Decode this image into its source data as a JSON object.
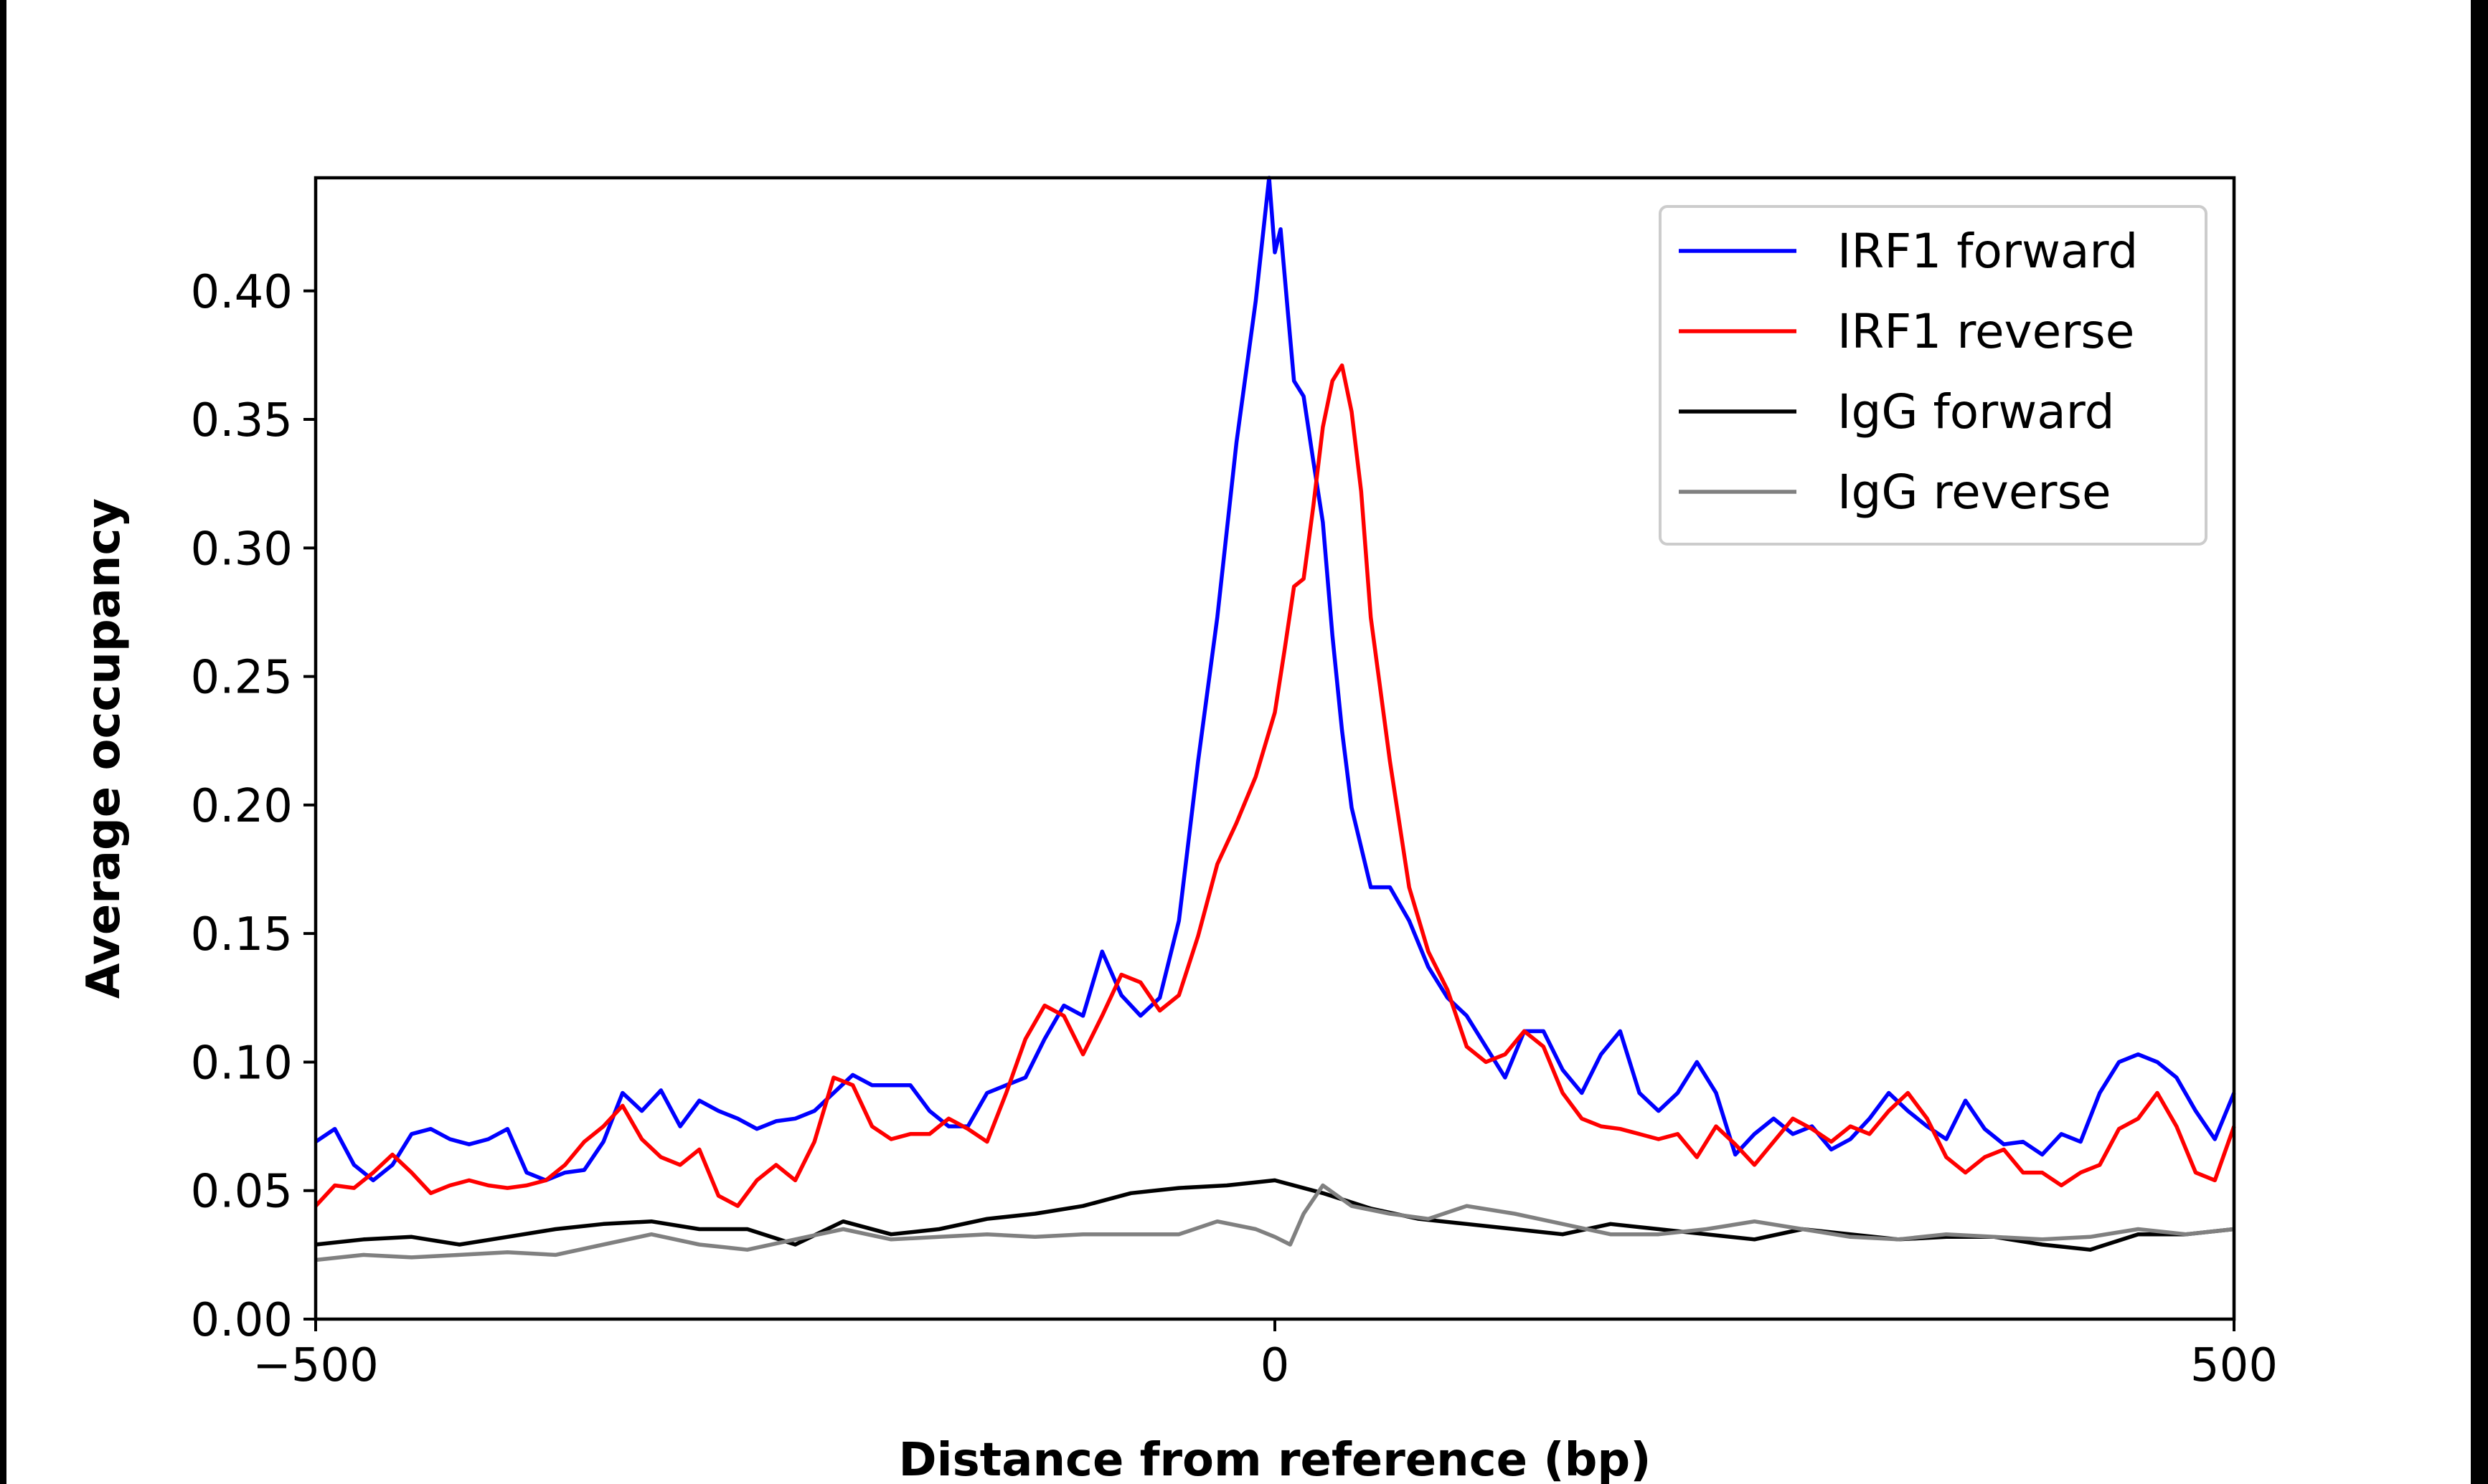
{
  "chart_data": {
    "type": "line",
    "title": "",
    "xlabel": "Distance from reference (bp)",
    "ylabel": "Average occupancy",
    "xlim": [
      -500,
      500
    ],
    "ylim": [
      0,
      0.444
    ],
    "xticks": [
      -500,
      0,
      500
    ],
    "xtick_labels": [
      "−500",
      "0",
      "500"
    ],
    "yticks": [
      0,
      0.05,
      0.1,
      0.15,
      0.2,
      0.25,
      0.3,
      0.35,
      0.4
    ],
    "ytick_labels": [
      "0.00",
      "0.05",
      "0.10",
      "0.15",
      "0.20",
      "0.25",
      "0.30",
      "0.35",
      "0.40"
    ],
    "grid": false,
    "legend_position": "top-right",
    "series": [
      {
        "name": "IRF1 forward",
        "color": "#0000ff",
        "x": [
          -500,
          -490,
          -480,
          -470,
          -460,
          -450,
          -440,
          -430,
          -420,
          -410,
          -400,
          -390,
          -380,
          -370,
          -360,
          -350,
          -340,
          -330,
          -320,
          -310,
          -300,
          -290,
          -280,
          -270,
          -260,
          -250,
          -240,
          -230,
          -220,
          -210,
          -200,
          -190,
          -180,
          -170,
          -160,
          -150,
          -140,
          -130,
          -120,
          -110,
          -100,
          -90,
          -80,
          -70,
          -60,
          -50,
          -40,
          -30,
          -20,
          -10,
          -3,
          0,
          3,
          7,
          10,
          15,
          20,
          25,
          30,
          35,
          40,
          50,
          60,
          70,
          80,
          90,
          100,
          110,
          120,
          130,
          140,
          150,
          160,
          170,
          180,
          190,
          200,
          210,
          220,
          230,
          240,
          250,
          260,
          270,
          280,
          290,
          300,
          310,
          320,
          330,
          340,
          350,
          360,
          370,
          380,
          390,
          400,
          410,
          420,
          430,
          440,
          450,
          460,
          470,
          480,
          490,
          500
        ],
        "y": [
          0.069,
          0.074,
          0.06,
          0.054,
          0.06,
          0.072,
          0.074,
          0.07,
          0.068,
          0.07,
          0.074,
          0.057,
          0.054,
          0.057,
          0.058,
          0.069,
          0.088,
          0.081,
          0.089,
          0.075,
          0.085,
          0.081,
          0.078,
          0.074,
          0.077,
          0.078,
          0.081,
          0.088,
          0.095,
          0.091,
          0.091,
          0.091,
          0.081,
          0.075,
          0.075,
          0.088,
          0.091,
          0.094,
          0.109,
          0.122,
          0.118,
          0.143,
          0.126,
          0.118,
          0.125,
          0.155,
          0.217,
          0.273,
          0.341,
          0.396,
          0.444,
          0.415,
          0.424,
          0.39,
          0.365,
          0.359,
          0.334,
          0.31,
          0.266,
          0.229,
          0.199,
          0.168,
          0.168,
          0.155,
          0.137,
          0.125,
          0.118,
          0.106,
          0.094,
          0.112,
          0.112,
          0.097,
          0.088,
          0.103,
          0.112,
          0.088,
          0.081,
          0.088,
          0.1,
          0.088,
          0.064,
          0.072,
          0.078,
          0.072,
          0.075,
          0.066,
          0.07,
          0.078,
          0.088,
          0.081,
          0.075,
          0.07,
          0.085,
          0.074,
          0.068,
          0.069,
          0.064,
          0.072,
          0.069,
          0.088,
          0.1,
          0.103,
          0.1,
          0.094,
          0.081,
          0.07,
          0.088
        ]
      },
      {
        "name": "IRF1 reverse",
        "color": "#ff0000",
        "x": [
          -500,
          -490,
          -480,
          -470,
          -460,
          -450,
          -440,
          -430,
          -420,
          -410,
          -400,
          -390,
          -380,
          -370,
          -360,
          -350,
          -340,
          -330,
          -320,
          -310,
          -300,
          -290,
          -280,
          -270,
          -260,
          -250,
          -240,
          -230,
          -220,
          -210,
          -200,
          -190,
          -180,
          -170,
          -160,
          -150,
          -140,
          -130,
          -120,
          -110,
          -100,
          -90,
          -80,
          -70,
          -60,
          -50,
          -40,
          -30,
          -20,
          -10,
          0,
          5,
          10,
          15,
          20,
          25,
          30,
          35,
          40,
          45,
          50,
          60,
          70,
          80,
          90,
          100,
          110,
          120,
          130,
          140,
          150,
          160,
          170,
          180,
          190,
          200,
          210,
          220,
          230,
          240,
          250,
          260,
          270,
          280,
          290,
          300,
          310,
          320,
          330,
          340,
          350,
          360,
          370,
          380,
          390,
          400,
          410,
          420,
          430,
          440,
          450,
          460,
          470,
          480,
          490,
          500
        ],
        "y": [
          0.044,
          0.052,
          0.051,
          0.057,
          0.064,
          0.057,
          0.049,
          0.052,
          0.054,
          0.052,
          0.051,
          0.052,
          0.054,
          0.06,
          0.069,
          0.075,
          0.083,
          0.07,
          0.063,
          0.06,
          0.066,
          0.048,
          0.044,
          0.054,
          0.06,
          0.054,
          0.069,
          0.094,
          0.091,
          0.075,
          0.07,
          0.072,
          0.072,
          0.078,
          0.074,
          0.069,
          0.088,
          0.109,
          0.122,
          0.118,
          0.103,
          0.118,
          0.134,
          0.131,
          0.12,
          0.126,
          0.149,
          0.177,
          0.193,
          0.211,
          0.236,
          0.26,
          0.285,
          0.288,
          0.316,
          0.347,
          0.365,
          0.371,
          0.353,
          0.322,
          0.273,
          0.217,
          0.168,
          0.143,
          0.128,
          0.106,
          0.1,
          0.103,
          0.112,
          0.106,
          0.088,
          0.078,
          0.075,
          0.074,
          0.072,
          0.07,
          0.072,
          0.063,
          0.075,
          0.068,
          0.06,
          0.069,
          0.078,
          0.074,
          0.069,
          0.075,
          0.072,
          0.081,
          0.088,
          0.078,
          0.063,
          0.057,
          0.063,
          0.066,
          0.057,
          0.057,
          0.052,
          0.057,
          0.06,
          0.074,
          0.078,
          0.088,
          0.075,
          0.057,
          0.054,
          0.075
        ]
      },
      {
        "name": "IgG forward",
        "color": "#000000",
        "x": [
          -500,
          -475,
          -450,
          -425,
          -400,
          -375,
          -350,
          -325,
          -300,
          -275,
          -250,
          -225,
          -200,
          -175,
          -150,
          -125,
          -100,
          -75,
          -50,
          -25,
          0,
          25,
          50,
          75,
          100,
          125,
          150,
          175,
          200,
          225,
          250,
          275,
          300,
          325,
          350,
          375,
          400,
          425,
          450,
          475,
          500
        ],
        "y": [
          0.029,
          0.031,
          0.032,
          0.029,
          0.032,
          0.035,
          0.037,
          0.038,
          0.035,
          0.035,
          0.029,
          0.038,
          0.033,
          0.035,
          0.039,
          0.041,
          0.044,
          0.049,
          0.051,
          0.052,
          0.054,
          0.049,
          0.043,
          0.039,
          0.037,
          0.035,
          0.033,
          0.037,
          0.035,
          0.033,
          0.031,
          0.035,
          0.033,
          0.031,
          0.032,
          0.032,
          0.029,
          0.027,
          0.033,
          0.033,
          0.035
        ]
      },
      {
        "name": "IgG reverse",
        "color": "#808080",
        "x": [
          -500,
          -475,
          -450,
          -425,
          -400,
          -375,
          -350,
          -325,
          -300,
          -275,
          -250,
          -225,
          -200,
          -175,
          -150,
          -125,
          -100,
          -75,
          -50,
          -30,
          -10,
          0,
          8,
          15,
          25,
          40,
          60,
          80,
          100,
          125,
          150,
          175,
          200,
          225,
          250,
          275,
          300,
          325,
          350,
          375,
          400,
          425,
          450,
          475,
          500
        ],
        "y": [
          0.023,
          0.025,
          0.024,
          0.025,
          0.026,
          0.025,
          0.029,
          0.033,
          0.029,
          0.027,
          0.031,
          0.035,
          0.031,
          0.032,
          0.033,
          0.032,
          0.033,
          0.033,
          0.033,
          0.038,
          0.035,
          0.032,
          0.029,
          0.041,
          0.052,
          0.044,
          0.041,
          0.039,
          0.044,
          0.041,
          0.037,
          0.033,
          0.033,
          0.035,
          0.038,
          0.035,
          0.032,
          0.031,
          0.033,
          0.032,
          0.031,
          0.032,
          0.035,
          0.033,
          0.035
        ]
      }
    ]
  }
}
